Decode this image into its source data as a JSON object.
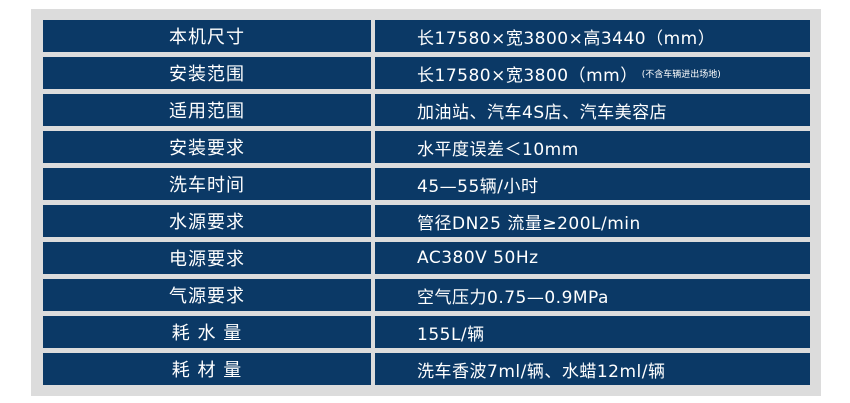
{
  "rows": [
    {
      "label": "本机尺寸",
      "value": "长17580×宽3800×高3440（mm）"
    },
    {
      "label": "安装范围",
      "value": "长17580×宽3800（mm）",
      "note": "(不含车辆进出场地)"
    },
    {
      "label": "适用范围",
      "value": "加油站、汽车4S店、汽车美容店"
    },
    {
      "label": "安装要求",
      "value": "水平度误差＜10mm"
    },
    {
      "label": "洗车时间",
      "value": "45—55辆/小时"
    },
    {
      "label": "水源要求",
      "value": "管径DN25 流量≥200L/min"
    },
    {
      "label": "电源要求",
      "value": "AC380V 50Hz"
    },
    {
      "label": "气源要求",
      "value": "空气压力0.75—0.9MPa"
    },
    {
      "label": "耗 水 量",
      "value": "155L/辆"
    },
    {
      "label": "耗 材 量",
      "value": "洗车香波7ml/辆、水蜡12ml/辆"
    }
  ]
}
